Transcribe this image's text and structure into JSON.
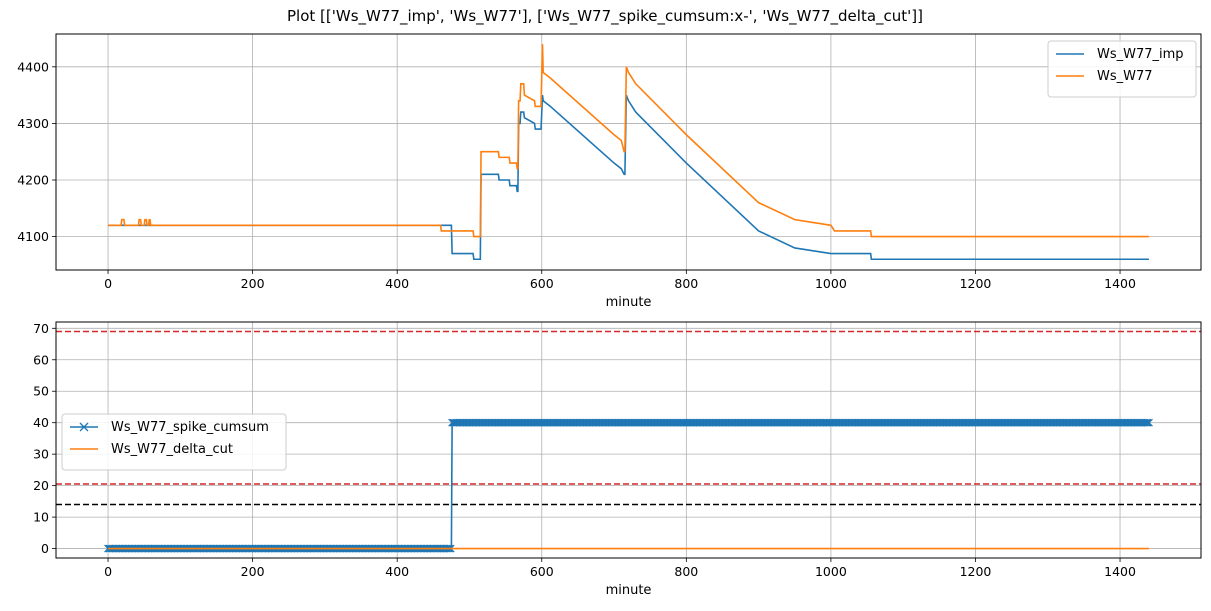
{
  "figure": {
    "title": "Plot [['Ws_W77_imp', 'Ws_W77'], ['Ws_W77_spike_cumsum:x-', 'Ws_W77_delta_cut']]"
  },
  "colors": {
    "blue": "#1f77b4",
    "orange": "#ff7f0e",
    "grid": "#b0b0b0",
    "red_dash": "#d62728",
    "black_dash": "#000000"
  },
  "chart_data": [
    {
      "type": "line",
      "xlabel": "minute",
      "ylabel": "",
      "xlim": [
        -72,
        1512
      ],
      "ylim": [
        4041,
        4458
      ],
      "xticks": [
        0,
        200,
        400,
        600,
        800,
        1000,
        1200,
        1400
      ],
      "yticks": [
        4100,
        4200,
        4300,
        4400
      ],
      "grid": true,
      "legend": "top-right",
      "series": [
        {
          "name": "Ws_W77_imp",
          "color": "#1f77b4",
          "x": [
            0,
            475,
            476,
            505,
            506,
            515,
            516,
            540,
            541,
            555,
            556,
            565,
            566,
            567,
            568,
            570,
            571,
            575,
            576,
            590,
            591,
            598,
            599,
            601,
            602,
            612,
            700,
            710,
            714,
            715,
            717,
            720,
            730,
            800,
            900,
            950,
            1000,
            1010,
            1050,
            1055,
            1056,
            1440
          ],
          "y": [
            4120,
            4120,
            4070,
            4070,
            4060,
            4060,
            4210,
            4210,
            4200,
            4200,
            4190,
            4190,
            4180,
            4180,
            4300,
            4300,
            4320,
            4320,
            4310,
            4300,
            4290,
            4290,
            4290,
            4350,
            4340,
            4330,
            4230,
            4220,
            4210,
            4210,
            4350,
            4340,
            4320,
            4230,
            4110,
            4080,
            4070,
            4070,
            4070,
            4070,
            4060,
            4060
          ]
        },
        {
          "name": "Ws_W77",
          "color": "#ff7f0e",
          "x": [
            0,
            18,
            19,
            22,
            23,
            42,
            43,
            45,
            46,
            50,
            51,
            53,
            54,
            56,
            57,
            58,
            59,
            460,
            461,
            505,
            506,
            515,
            516,
            540,
            541,
            555,
            556,
            565,
            566,
            567,
            568,
            570,
            571,
            575,
            576,
            590,
            591,
            598,
            599,
            601,
            602,
            612,
            700,
            710,
            714,
            715,
            717,
            720,
            730,
            800,
            900,
            950,
            1000,
            1005,
            1050,
            1055,
            1056,
            1440
          ],
          "y": [
            4120,
            4120,
            4130,
            4130,
            4120,
            4120,
            4130,
            4130,
            4120,
            4120,
            4130,
            4130,
            4120,
            4120,
            4130,
            4130,
            4120,
            4120,
            4110,
            4110,
            4100,
            4100,
            4250,
            4250,
            4240,
            4240,
            4230,
            4230,
            4220,
            4220,
            4340,
            4340,
            4370,
            4370,
            4350,
            4340,
            4330,
            4330,
            4330,
            4440,
            4390,
            4380,
            4280,
            4270,
            4250,
            4250,
            4400,
            4390,
            4370,
            4280,
            4160,
            4130,
            4120,
            4110,
            4110,
            4110,
            4100,
            4100
          ]
        }
      ]
    },
    {
      "type": "line",
      "xlabel": "minute",
      "ylabel": "",
      "xlim": [
        -72,
        1512
      ],
      "ylim": [
        -3,
        72
      ],
      "xticks": [
        0,
        200,
        400,
        600,
        800,
        1000,
        1200,
        1400
      ],
      "yticks": [
        0,
        10,
        20,
        30,
        40,
        50,
        60,
        70
      ],
      "grid": true,
      "legend": "center-left",
      "series": [
        {
          "name": "Ws_W77_spike_cumsum",
          "color": "#1f77b4",
          "marker": "x",
          "x": [
            0,
            475,
            476,
            1440
          ],
          "y": [
            0,
            0,
            40,
            40
          ]
        },
        {
          "name": "Ws_W77_delta_cut",
          "color": "#ff7f0e",
          "x": [
            0,
            1440
          ],
          "y": [
            0,
            0
          ]
        }
      ],
      "hlines": [
        {
          "y": 69,
          "color": "#d62728",
          "style": "dashed"
        },
        {
          "y": 20.5,
          "color": "#d62728",
          "style": "dashed"
        },
        {
          "y": 14,
          "color": "#000000",
          "style": "dashed"
        }
      ]
    }
  ]
}
